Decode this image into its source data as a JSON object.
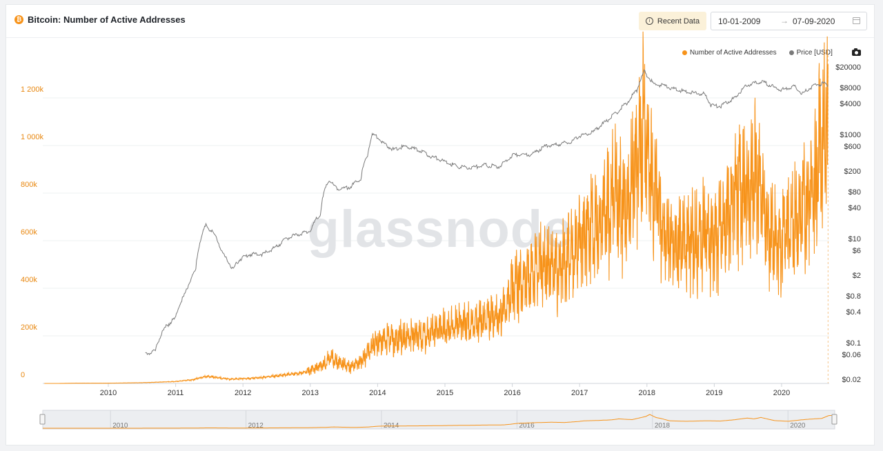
{
  "header": {
    "title": "Bitcoin: Number of Active Addresses",
    "recent_label": "Recent Data",
    "date_start": "10-01-2009",
    "date_end": "07-09-2020",
    "date_arrow": "→"
  },
  "watermark": "glassnode",
  "colors": {
    "addresses": "#f7931a",
    "price": "#7a7a7a",
    "grid": "#eef0f2",
    "left_axis_text": "#e8870f",
    "right_axis_text": "#333333"
  },
  "chart_data": {
    "type": "line",
    "title": "Bitcoin: Number of Active Addresses",
    "x_ticks": [
      "2010",
      "2011",
      "2012",
      "2013",
      "2014",
      "2015",
      "2016",
      "2017",
      "2018",
      "2019",
      "2020"
    ],
    "y_left": {
      "label": "",
      "ticks": [
        "0",
        "200k",
        "400k",
        "600k",
        "800k",
        "1 000k",
        "1 200k"
      ],
      "ylim": [
        0,
        1400000
      ]
    },
    "y_right": {
      "label": "",
      "scale": "log",
      "ticks": [
        "$0.02",
        "$0.06",
        "$0.1",
        "$0.4",
        "$0.8",
        "$2",
        "$6",
        "$10",
        "$40",
        "$80",
        "$200",
        "$600",
        "$1000",
        "$4000",
        "$8000",
        "$20000"
      ]
    },
    "legend_placement": "top-right",
    "series": [
      {
        "name": "Number of Active Addresses",
        "axis": "left",
        "x": [
          2009.25,
          2009.5,
          2010.0,
          2010.5,
          2011.0,
          2011.25,
          2011.45,
          2011.6,
          2011.8,
          2012.0,
          2012.3,
          2012.6,
          2012.9,
          2013.0,
          2013.2,
          2013.3,
          2013.4,
          2013.6,
          2013.8,
          2013.92,
          2014.0,
          2014.3,
          2014.6,
          2014.9,
          2015.0,
          2015.3,
          2015.6,
          2015.8,
          2015.9,
          2016.0,
          2016.1,
          2016.3,
          2016.5,
          2016.7,
          2016.9,
          2017.0,
          2017.2,
          2017.4,
          2017.5,
          2017.7,
          2017.8,
          2017.9,
          2017.96,
          2018.05,
          2018.15,
          2018.25,
          2018.5,
          2018.8,
          2019.0,
          2019.2,
          2019.4,
          2019.5,
          2019.6,
          2019.8,
          2020.0,
          2020.2,
          2020.3,
          2020.5,
          2020.6,
          2020.69
        ],
        "values": [
          0,
          1000,
          1000,
          3000,
          8000,
          15000,
          30000,
          25000,
          18000,
          20000,
          25000,
          35000,
          45000,
          55000,
          80000,
          110000,
          90000,
          70000,
          100000,
          160000,
          180000,
          190000,
          200000,
          220000,
          230000,
          250000,
          270000,
          280000,
          330000,
          400000,
          430000,
          470000,
          500000,
          480000,
          560000,
          620000,
          650000,
          700000,
          780000,
          720000,
          850000,
          980000,
          1150000,
          900000,
          780000,
          620000,
          580000,
          620000,
          600000,
          700000,
          850000,
          780000,
          900000,
          640000,
          580000,
          700000,
          750000,
          820000,
          1050000,
          1100000
        ]
      },
      {
        "name": "Price [USD]",
        "axis": "right",
        "x": [
          2010.55,
          2010.7,
          2010.85,
          2011.0,
          2011.15,
          2011.3,
          2011.45,
          2011.55,
          2011.7,
          2011.85,
          2011.95,
          2012.1,
          2012.3,
          2012.5,
          2012.7,
          2012.9,
          2013.0,
          2013.15,
          2013.28,
          2013.35,
          2013.45,
          2013.6,
          2013.75,
          2013.85,
          2013.92,
          2014.0,
          2014.1,
          2014.25,
          2014.4,
          2014.6,
          2014.8,
          2015.0,
          2015.2,
          2015.4,
          2015.6,
          2015.8,
          2015.9,
          2016.0,
          2016.3,
          2016.5,
          2016.7,
          2016.9,
          2017.0,
          2017.2,
          2017.4,
          2017.55,
          2017.7,
          2017.85,
          2017.96,
          2018.0,
          2018.1,
          2018.2,
          2018.4,
          2018.6,
          2018.85,
          2018.95,
          2019.1,
          2019.3,
          2019.5,
          2019.7,
          2019.9,
          2020.0,
          2020.2,
          2020.3,
          2020.5,
          2020.6,
          2020.69
        ],
        "values": [
          0.06,
          0.07,
          0.2,
          0.3,
          0.9,
          2.5,
          18,
          13,
          5,
          2.5,
          4,
          5,
          5,
          7,
          11,
          13,
          14,
          30,
          140,
          100,
          90,
          100,
          140,
          400,
          1000,
          900,
          650,
          500,
          600,
          500,
          380,
          300,
          240,
          230,
          260,
          240,
          300,
          400,
          420,
          600,
          650,
          750,
          950,
          1100,
          1800,
          2600,
          4000,
          7000,
          16000,
          14000,
          9000,
          9000,
          7500,
          6500,
          6000,
          3700,
          3500,
          5000,
          9000,
          10500,
          8000,
          7200,
          8500,
          6000,
          9000,
          9500,
          9200
        ]
      }
    ]
  },
  "navigator": {
    "labels": [
      "2010",
      "2012",
      "2014",
      "2016",
      "2018",
      "2020"
    ]
  }
}
